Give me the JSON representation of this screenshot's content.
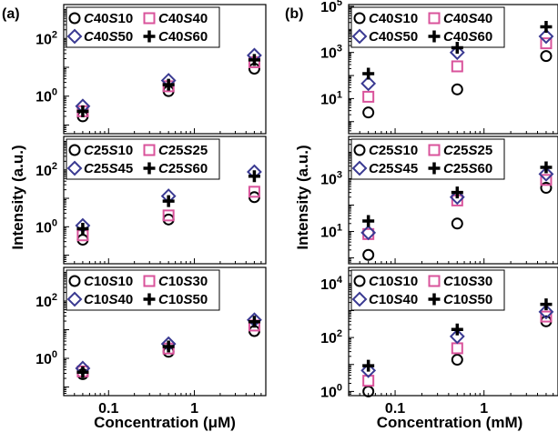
{
  "figure": {
    "panel_labels": [
      "(a)",
      "(b)"
    ],
    "ylabel": "Intensity (a.u.)",
    "xlabels": [
      "Concentration (μM)",
      "Concentration (mM)"
    ]
  },
  "chart_data": [
    {
      "type": "scatter",
      "panel": "(a)",
      "subplot": "top",
      "x": [
        0.05,
        0.5,
        5
      ],
      "xlim": [
        0.03,
        6.8
      ],
      "xscale": "log",
      "ylim": [
        0.05,
        1500
      ],
      "yscale": "log",
      "yticks": [
        1,
        100
      ],
      "yticklabels": [
        "10^0",
        "10^2"
      ],
      "xticks": [],
      "xticklabels": [],
      "xlabel": "",
      "ylabel": "",
      "grid": false,
      "legend": "top-left",
      "series": [
        {
          "name": "C40S10",
          "marker": "circle",
          "values": [
            0.2,
            1.5,
            9
          ]
        },
        {
          "name": "C40S40",
          "marker": "square",
          "values": [
            0.3,
            2.2,
            15
          ]
        },
        {
          "name": "C40S50",
          "marker": "diamond",
          "values": [
            0.45,
            3.5,
            26
          ]
        },
        {
          "name": "C40S60",
          "marker": "plus",
          "values": [
            0.3,
            2.5,
            18
          ]
        }
      ]
    },
    {
      "type": "scatter",
      "panel": "(a)",
      "subplot": "middle",
      "x": [
        0.05,
        0.5,
        5
      ],
      "xlim": [
        0.03,
        6.8
      ],
      "xscale": "log",
      "ylim": [
        0.05,
        1500
      ],
      "yscale": "log",
      "yticks": [
        1,
        100
      ],
      "yticklabels": [
        "10^0",
        "10^2"
      ],
      "xticks": [],
      "xticklabels": [],
      "xlabel": "",
      "ylabel": "Intensity (a.u.)",
      "grid": false,
      "legend": "top-left",
      "series": [
        {
          "name": "C25S10",
          "marker": "circle",
          "values": [
            0.35,
            1.8,
            11
          ]
        },
        {
          "name": "C25S25",
          "marker": "square",
          "values": [
            0.5,
            2.5,
            17
          ]
        },
        {
          "name": "C25S45",
          "marker": "diamond",
          "values": [
            1.1,
            12,
            85
          ]
        },
        {
          "name": "C25S60",
          "marker": "plus",
          "values": [
            0.85,
            8,
            60
          ]
        }
      ]
    },
    {
      "type": "scatter",
      "panel": "(a)",
      "subplot": "bottom",
      "x": [
        0.05,
        0.5,
        5
      ],
      "xlim": [
        0.03,
        6.8
      ],
      "xscale": "log",
      "ylim": [
        0.05,
        1500
      ],
      "yscale": "log",
      "yticks": [
        1,
        100
      ],
      "yticklabels": [
        "10^0",
        "10^2"
      ],
      "xticks": [
        0.1,
        1
      ],
      "xticklabels": [
        "0.1",
        "1"
      ],
      "xlabel": "Concentration (μM)",
      "ylabel": "",
      "grid": false,
      "legend": "top-left",
      "series": [
        {
          "name": "C10S10",
          "marker": "circle",
          "values": [
            0.28,
            1.7,
            9
          ]
        },
        {
          "name": "C10S30",
          "marker": "square",
          "values": [
            0.35,
            2.2,
            14
          ]
        },
        {
          "name": "C10S40",
          "marker": "diamond",
          "values": [
            0.45,
            3.2,
            22
          ]
        },
        {
          "name": "C10S50",
          "marker": "plus",
          "values": [
            0.33,
            2.6,
            19
          ]
        }
      ]
    },
    {
      "type": "scatter",
      "panel": "(b)",
      "subplot": "top",
      "x": [
        0.05,
        0.5,
        5
      ],
      "xlim": [
        0.03,
        6.8
      ],
      "xscale": "log",
      "ylim": [
        0.3,
        120000
      ],
      "yscale": "log",
      "yticks": [
        10,
        1000,
        100000
      ],
      "yticklabels": [
        "10^1",
        "10^3",
        "10^5"
      ],
      "xticks": [],
      "xticklabels": [],
      "xlabel": "",
      "ylabel": "",
      "grid": false,
      "legend": "top-left",
      "series": [
        {
          "name": "C40S10",
          "marker": "circle",
          "values": [
            2.5,
            25,
            700
          ]
        },
        {
          "name": "C40S40",
          "marker": "square",
          "values": [
            12,
            250,
            2500
          ]
        },
        {
          "name": "C40S50",
          "marker": "diamond",
          "values": [
            45,
            1000,
            5000
          ]
        },
        {
          "name": "C40S60",
          "marker": "plus",
          "values": [
            120,
            1600,
            13000
          ]
        }
      ]
    },
    {
      "type": "scatter",
      "panel": "(b)",
      "subplot": "middle",
      "x": [
        0.05,
        0.5,
        5
      ],
      "xlim": [
        0.03,
        6.8
      ],
      "xscale": "log",
      "ylim": [
        0.6,
        40000
      ],
      "yscale": "log",
      "yticks": [
        10,
        1000
      ],
      "yticklabels": [
        "10^1",
        "10^3"
      ],
      "xticks": [],
      "xticklabels": [],
      "xlabel": "",
      "ylabel": "Intensity (a.u.)",
      "grid": false,
      "legend": "top-left",
      "series": [
        {
          "name": "C25S10",
          "marker": "circle",
          "values": [
            1.3,
            20,
            450
          ]
        },
        {
          "name": "C25S25",
          "marker": "square",
          "values": [
            8,
            150,
            900
          ]
        },
        {
          "name": "C25S45",
          "marker": "diamond",
          "values": [
            9,
            200,
            1500
          ]
        },
        {
          "name": "C25S60",
          "marker": "plus",
          "values": [
            25,
            300,
            2700
          ]
        }
      ]
    },
    {
      "type": "scatter",
      "panel": "(b)",
      "subplot": "bottom",
      "x": [
        0.05,
        0.5,
        5
      ],
      "xlim": [
        0.03,
        6.8
      ],
      "xscale": "log",
      "ylim": [
        0.7,
        40000
      ],
      "yscale": "log",
      "yticks": [
        1,
        100,
        10000
      ],
      "yticklabels": [
        "10^0",
        "10^2",
        "10^4"
      ],
      "xticks": [
        0.1,
        1
      ],
      "xticklabels": [
        "0.1",
        "1"
      ],
      "xlabel": "Concentration (mM)",
      "ylabel": "",
      "grid": false,
      "legend": "top-left",
      "series": [
        {
          "name": "C10S10",
          "marker": "circle",
          "values": [
            1,
            15,
            400
          ]
        },
        {
          "name": "C10S30",
          "marker": "square",
          "values": [
            2.5,
            40,
            600
          ]
        },
        {
          "name": "C10S40",
          "marker": "diamond",
          "values": [
            6,
            110,
            900
          ]
        },
        {
          "name": "C10S50",
          "marker": "plus",
          "values": [
            9,
            200,
            1700
          ]
        }
      ]
    }
  ]
}
